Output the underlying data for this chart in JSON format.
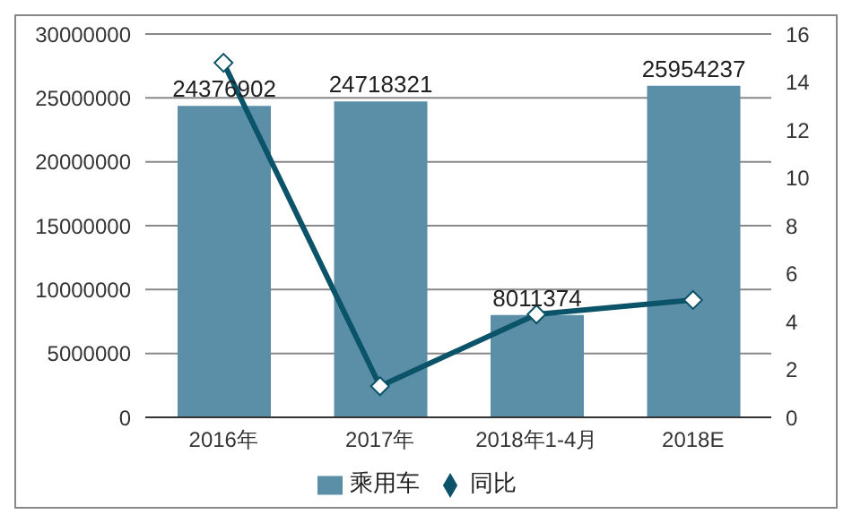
{
  "chart_data": {
    "type": "bar",
    "categories": [
      "2016年",
      "2017年",
      "2018年1-4月",
      "2018E"
    ],
    "series": [
      {
        "name": "乘用车",
        "color": "#5b8fa8",
        "values": [
          24376902,
          24718321,
          8011374,
          25954237
        ],
        "value_labels": [
          "24376902",
          "24718321",
          "8011374",
          "25954237"
        ]
      },
      {
        "name": "同比",
        "type": "line",
        "axis": "y2",
        "color": "#0b5368",
        "marker": "diamond",
        "values": [
          14.8,
          1.3,
          4.3,
          4.9
        ]
      }
    ],
    "ylim": [
      0,
      30000000
    ],
    "yticks": [
      0,
      5000000,
      10000000,
      15000000,
      20000000,
      25000000,
      30000000
    ],
    "y2lim": [
      0,
      16
    ],
    "y2ticks": [
      0,
      2,
      4,
      6,
      8,
      10,
      12,
      14,
      16
    ],
    "grid": "y",
    "legend": "bottom"
  }
}
